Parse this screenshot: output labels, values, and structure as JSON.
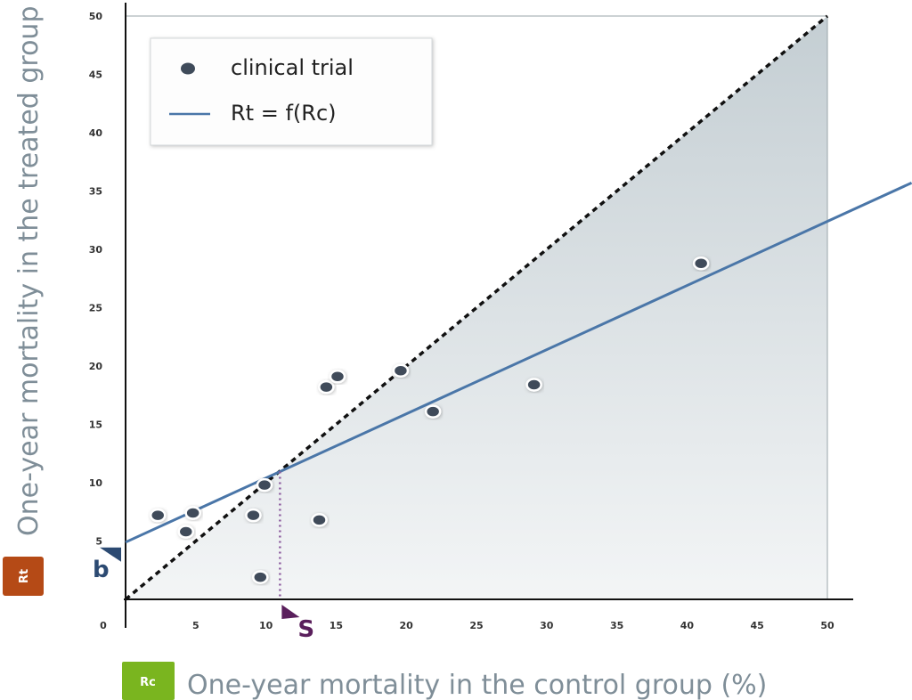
{
  "chart_data": {
    "type": "scatter",
    "xlabel": "One-year mortality in the control group (%)",
    "ylabel": "One-year mortality in the treated group (%)",
    "xlim": [
      0,
      50
    ],
    "ylim": [
      0,
      50
    ],
    "x_ticks": [
      0,
      5,
      10,
      15,
      20,
      25,
      30,
      35,
      40,
      45,
      50
    ],
    "y_ticks": [
      5,
      10,
      15,
      20,
      25,
      30,
      35,
      40,
      45,
      50
    ],
    "series": [
      {
        "name": "clinical trial",
        "kind": "scatter",
        "points": [
          {
            "x": 2.3,
            "y": 7.2
          },
          {
            "x": 4.3,
            "y": 5.8
          },
          {
            "x": 4.8,
            "y": 7.4
          },
          {
            "x": 9.1,
            "y": 7.2
          },
          {
            "x": 9.6,
            "y": 1.9
          },
          {
            "x": 9.9,
            "y": 9.8
          },
          {
            "x": 13.8,
            "y": 6.8
          },
          {
            "x": 14.3,
            "y": 18.2
          },
          {
            "x": 15.1,
            "y": 19.1
          },
          {
            "x": 19.6,
            "y": 19.6
          },
          {
            "x": 21.9,
            "y": 16.1
          },
          {
            "x": 29.1,
            "y": 18.4
          },
          {
            "x": 41.0,
            "y": 28.8
          }
        ]
      },
      {
        "name": "Rt = f(Rc)",
        "kind": "line",
        "intercept": 4.9,
        "slope": 0.55
      }
    ],
    "identity_line": {
      "from": 0,
      "to": 50,
      "style": "dashed"
    },
    "legend": {
      "position": "top-left",
      "entries": [
        "clinical trial",
        "Rt = f(Rc)"
      ]
    },
    "annotations": {
      "intercept_label": "b",
      "crossing_label": "S",
      "crossing_x": 11
    },
    "badges": {
      "y": "Rt",
      "x": "Rc"
    },
    "colors": {
      "point": "#3f4b5a",
      "fit_line": "#4a76a8",
      "identity_line": "#111111",
      "b_marker": "#2c4a72",
      "s_marker": "#5a1f5c",
      "s_line": "#8c5b9e",
      "badge_rt": "#b54a16",
      "badge_rc": "#7ab51f",
      "axis_title": "#7f8e98"
    }
  }
}
